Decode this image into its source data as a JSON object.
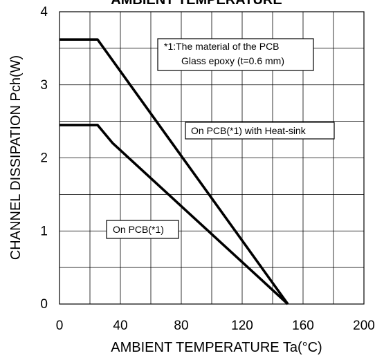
{
  "chart_data": {
    "type": "line",
    "title": "AMBIENT TEMPERATURE",
    "xlabel": "AMBIENT TEMPERATURE Ta(°C)",
    "ylabel": "CHANNEL DISSIPATION Pch(W)",
    "xlim": [
      0,
      200
    ],
    "ylim": [
      0,
      4
    ],
    "xticks": [
      0,
      40,
      80,
      120,
      160,
      200
    ],
    "yticks": [
      0,
      1,
      2,
      3,
      4
    ],
    "grid": true,
    "series": [
      {
        "name": "On PCB(*1) with Heat-sink",
        "x": [
          0,
          25,
          150
        ],
        "y": [
          3.62,
          3.62,
          0
        ]
      },
      {
        "name": "On PCB(*1)",
        "x": [
          0,
          25,
          35,
          150
        ],
        "y": [
          2.45,
          2.45,
          2.2,
          0
        ]
      }
    ],
    "annotations": [
      {
        "lines": [
          "*1:The material of the PCB",
          "Glass epoxy (t=0.6 mm)"
        ]
      }
    ]
  }
}
